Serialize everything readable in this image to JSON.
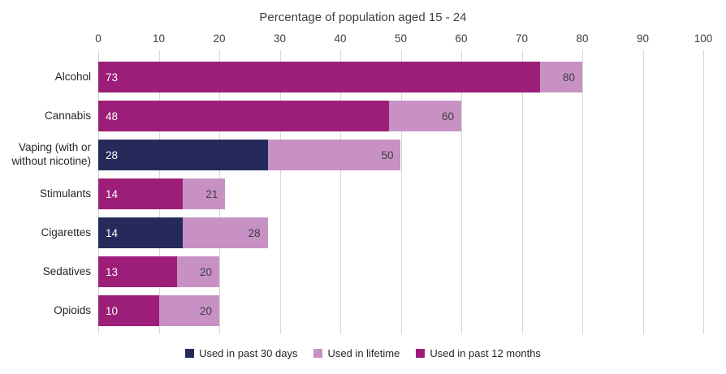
{
  "chart_data": {
    "type": "bar",
    "subtype": "horizontal-stacked-overlap",
    "title": "Percentage of population aged 15 - 24",
    "x_axis": {
      "min": 0,
      "max": 100,
      "tick_step": 10,
      "ticks": [
        0,
        10,
        20,
        30,
        40,
        50,
        60,
        70,
        80,
        90,
        100
      ],
      "position": "top"
    },
    "grid": true,
    "legend_position": "bottom",
    "series_colors": {
      "past_30_days": "#262a5b",
      "lifetime": "#c791c4",
      "past_12_months": "#9c1e78"
    },
    "rows": [
      {
        "category": "Alcohol",
        "inner_series": "past_12_months",
        "inner_value": 73,
        "lifetime_value": 80
      },
      {
        "category": "Cannabis",
        "inner_series": "past_12_months",
        "inner_value": 48,
        "lifetime_value": 60
      },
      {
        "category": "Vaping (with or without nicotine)",
        "inner_series": "past_30_days",
        "inner_value": 28,
        "lifetime_value": 50
      },
      {
        "category": "Stimulants",
        "inner_series": "past_12_months",
        "inner_value": 14,
        "lifetime_value": 21
      },
      {
        "category": "Cigarettes",
        "inner_series": "past_30_days",
        "inner_value": 14,
        "lifetime_value": 28
      },
      {
        "category": "Sedatives",
        "inner_series": "past_12_months",
        "inner_value": 13,
        "lifetime_value": 20
      },
      {
        "category": "Opioids",
        "inner_series": "past_12_months",
        "inner_value": 10,
        "lifetime_value": 20
      }
    ],
    "legend": [
      {
        "label": "Used in past 30 days",
        "color_key": "past_30_days"
      },
      {
        "label": "Used in lifetime",
        "color_key": "lifetime"
      },
      {
        "label": "Used in past 12 months",
        "color_key": "past_12_months"
      }
    ]
  }
}
